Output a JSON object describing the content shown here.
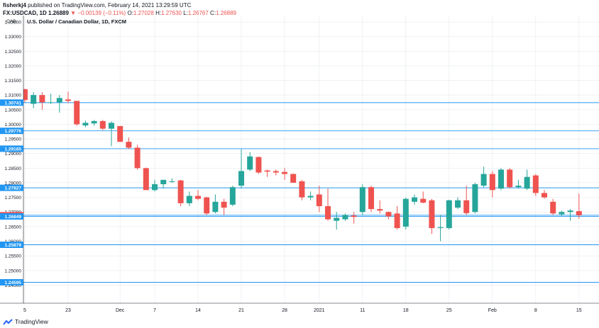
{
  "header": {
    "user": "fisherkj4",
    "published": "published on TradingView.com, February 14, 2021 13:29:59 UTC",
    "symbol_line": "FX:USDCAD, 1D 1.26889",
    "change": "−0.00139 (−0.11%)",
    "o_label": "O:",
    "o_value": "1.27028",
    "h_label": "H:",
    "h_value": "1.27630",
    "l_label": "L:",
    "l_value": "1.26767",
    "c_label": "C:",
    "c_value": "1.26889"
  },
  "footer": {
    "brand": "TradingView"
  },
  "colors": {
    "up": "#26a69a",
    "down": "#ef5350",
    "level": "#2196f3",
    "grid": "#e6e9ee",
    "axis": "#131722"
  },
  "chart_data": {
    "type": "candlestick",
    "title": "U.S. Dollar / Canadian Dollar, 1D, FXCM",
    "currency": "CAD",
    "ylim": [
      1.2388,
      1.3367
    ],
    "y_ticks": [
      "1.33500",
      "1.33000",
      "1.32500",
      "1.32000",
      "1.31500",
      "1.31000",
      "1.30500",
      "1.30000",
      "1.29500",
      "1.29000",
      "1.28500",
      "1.28000",
      "1.27500",
      "1.27000",
      "1.26500",
      "1.26000",
      "1.25500",
      "1.25000",
      "1.24500"
    ],
    "x_labels": [
      {
        "index": 0,
        "label": "5"
      },
      {
        "index": 5,
        "label": "23"
      },
      {
        "index": 11,
        "label": "Dec"
      },
      {
        "index": 15,
        "label": "7"
      },
      {
        "index": 20,
        "label": "14"
      },
      {
        "index": 25,
        "label": "21"
      },
      {
        "index": 30,
        "label": "28"
      },
      {
        "index": 34,
        "label": "2021"
      },
      {
        "index": 39,
        "label": "11"
      },
      {
        "index": 44,
        "label": "18"
      },
      {
        "index": 49,
        "label": "25"
      },
      {
        "index": 54,
        "label": "Feb"
      },
      {
        "index": 59,
        "label": "8"
      },
      {
        "index": 64,
        "label": "15"
      }
    ],
    "levels": [
      "1.30741",
      "1.29776",
      "1.29165",
      "1.27827",
      "1.26889",
      "1.26849",
      "1.25879",
      "1.24595"
    ],
    "current_price": "1.26889",
    "candles": [
      {
        "o": 1.312,
        "h": 1.3122,
        "l": 1.3075,
        "c": 1.3083
      },
      {
        "o": 1.307,
        "h": 1.311,
        "l": 1.3055,
        "c": 1.31
      },
      {
        "o": 1.31,
        "h": 1.311,
        "l": 1.305,
        "c": 1.3075
      },
      {
        "o": 1.3075,
        "h": 1.3105,
        "l": 1.307,
        "c": 1.3075
      },
      {
        "o": 1.3075,
        "h": 1.31,
        "l": 1.304,
        "c": 1.309
      },
      {
        "o": 1.3085,
        "h": 1.3112,
        "l": 1.3072,
        "c": 1.308
      },
      {
        "o": 1.308,
        "h": 1.308,
        "l": 1.2995,
        "c": 1.3
      },
      {
        "o": 1.2996,
        "h": 1.3013,
        "l": 1.299,
        "c": 1.3005
      },
      {
        "o": 1.3003,
        "h": 1.3015,
        "l": 1.2995,
        "c": 1.3011
      },
      {
        "o": 1.3011,
        "h": 1.3015,
        "l": 1.298,
        "c": 1.2985
      },
      {
        "o": 1.2985,
        "h": 1.301,
        "l": 1.2925,
        "c": 1.3005
      },
      {
        "o": 1.2994,
        "h": 1.2994,
        "l": 1.294,
        "c": 1.294
      },
      {
        "o": 1.294,
        "h": 1.2955,
        "l": 1.2915,
        "c": 1.292
      },
      {
        "o": 1.292,
        "h": 1.293,
        "l": 1.2845,
        "c": 1.285
      },
      {
        "o": 1.285,
        "h": 1.2852,
        "l": 1.2775,
        "c": 1.2775
      },
      {
        "o": 1.2775,
        "h": 1.281,
        "l": 1.277,
        "c": 1.2795
      },
      {
        "o": 1.2795,
        "h": 1.281,
        "l": 1.278,
        "c": 1.281
      },
      {
        "o": 1.2805,
        "h": 1.2815,
        "l": 1.28,
        "c": 1.2805
      },
      {
        "o": 1.2808,
        "h": 1.281,
        "l": 1.272,
        "c": 1.273
      },
      {
        "o": 1.273,
        "h": 1.277,
        "l": 1.272,
        "c": 1.2755
      },
      {
        "o": 1.2755,
        "h": 1.2775,
        "l": 1.274,
        "c": 1.2745
      },
      {
        "o": 1.275,
        "h": 1.2752,
        "l": 1.269,
        "c": 1.2695
      },
      {
        "o": 1.27,
        "h": 1.276,
        "l": 1.2695,
        "c": 1.2735
      },
      {
        "o": 1.2735,
        "h": 1.2745,
        "l": 1.269,
        "c": 1.2715
      },
      {
        "o": 1.2725,
        "h": 1.279,
        "l": 1.272,
        "c": 1.2785
      },
      {
        "o": 1.279,
        "h": 1.2915,
        "l": 1.278,
        "c": 1.284
      },
      {
        "o": 1.2845,
        "h": 1.2905,
        "l": 1.284,
        "c": 1.289
      },
      {
        "o": 1.2888,
        "h": 1.289,
        "l": 1.283,
        "c": 1.2835
      },
      {
        "o": 1.2842,
        "h": 1.2845,
        "l": 1.282,
        "c": 1.2838
      },
      {
        "o": 1.284,
        "h": 1.2845,
        "l": 1.2825,
        "c": 1.2835
      },
      {
        "o": 1.2837,
        "h": 1.285,
        "l": 1.281,
        "c": 1.283
      },
      {
        "o": 1.283,
        "h": 1.2832,
        "l": 1.28,
        "c": 1.28
      },
      {
        "o": 1.2805,
        "h": 1.281,
        "l": 1.274,
        "c": 1.275
      },
      {
        "o": 1.275,
        "h": 1.277,
        "l": 1.274,
        "c": 1.2755
      },
      {
        "o": 1.276,
        "h": 1.279,
        "l": 1.27,
        "c": 1.272
      },
      {
        "o": 1.272,
        "h": 1.278,
        "l": 1.267,
        "c": 1.2675
      },
      {
        "o": 1.267,
        "h": 1.27,
        "l": 1.264,
        "c": 1.268
      },
      {
        "o": 1.2675,
        "h": 1.2695,
        "l": 1.267,
        "c": 1.269
      },
      {
        "o": 1.2688,
        "h": 1.27,
        "l": 1.266,
        "c": 1.2683
      },
      {
        "o": 1.27,
        "h": 1.2795,
        "l": 1.269,
        "c": 1.2785
      },
      {
        "o": 1.2785,
        "h": 1.279,
        "l": 1.27,
        "c": 1.271
      },
      {
        "o": 1.271,
        "h": 1.274,
        "l": 1.2695,
        "c": 1.2705
      },
      {
        "o": 1.27,
        "h": 1.2702,
        "l": 1.2675,
        "c": 1.2685
      },
      {
        "o": 1.2695,
        "h": 1.272,
        "l": 1.264,
        "c": 1.2645
      },
      {
        "o": 1.265,
        "h": 1.275,
        "l": 1.264,
        "c": 1.2745
      },
      {
        "o": 1.2735,
        "h": 1.276,
        "l": 1.2725,
        "c": 1.275
      },
      {
        "o": 1.2745,
        "h": 1.277,
        "l": 1.273,
        "c": 1.2732
      },
      {
        "o": 1.274,
        "h": 1.2745,
        "l": 1.2625,
        "c": 1.2645
      },
      {
        "o": 1.2645,
        "h": 1.269,
        "l": 1.26,
        "c": 1.2648
      },
      {
        "o": 1.2645,
        "h": 1.2742,
        "l": 1.264,
        "c": 1.274
      },
      {
        "o": 1.2715,
        "h": 1.275,
        "l": 1.271,
        "c": 1.274
      },
      {
        "o": 1.274,
        "h": 1.279,
        "l": 1.269,
        "c": 1.2696
      },
      {
        "o": 1.27,
        "h": 1.28,
        "l": 1.2695,
        "c": 1.2795
      },
      {
        "o": 1.279,
        "h": 1.2855,
        "l": 1.2785,
        "c": 1.283
      },
      {
        "o": 1.283,
        "h": 1.284,
        "l": 1.275,
        "c": 1.2775
      },
      {
        "o": 1.278,
        "h": 1.285,
        "l": 1.2775,
        "c": 1.2845
      },
      {
        "o": 1.2845,
        "h": 1.285,
        "l": 1.278,
        "c": 1.2785
      },
      {
        "o": 1.2785,
        "h": 1.281,
        "l": 1.278,
        "c": 1.279
      },
      {
        "o": 1.278,
        "h": 1.2845,
        "l": 1.2775,
        "c": 1.282
      },
      {
        "o": 1.2825,
        "h": 1.283,
        "l": 1.2755,
        "c": 1.2765
      },
      {
        "o": 1.2765,
        "h": 1.2775,
        "l": 1.2745,
        "c": 1.275
      },
      {
        "o": 1.2735,
        "h": 1.2745,
        "l": 1.269,
        "c": 1.2695
      },
      {
        "o": 1.2692,
        "h": 1.2705,
        "l": 1.2685,
        "c": 1.27
      },
      {
        "o": 1.27,
        "h": 1.271,
        "l": 1.267,
        "c": 1.2705
      },
      {
        "o": 1.27028,
        "h": 1.2763,
        "l": 1.26767,
        "c": 1.26889
      }
    ]
  }
}
